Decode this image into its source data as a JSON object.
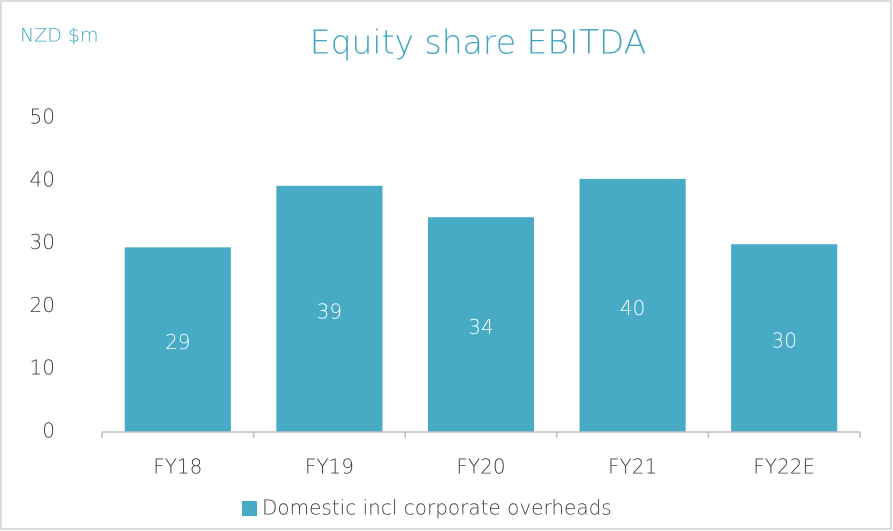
{
  "chart_data": {
    "type": "bar",
    "title": "Equity share EBITDA",
    "y_label": "NZD $m",
    "categories": [
      "FY18",
      "FY19",
      "FY20",
      "FY21",
      "FY22E"
    ],
    "series": [
      {
        "name": "Domestic incl corporate overheads",
        "color": "#47abc6",
        "values": [
          29.4,
          39.2,
          34.2,
          40.3,
          29.9
        ],
        "value_labels": [
          "29",
          "39",
          "34",
          "40",
          "30"
        ]
      }
    ],
    "ylim": [
      0,
      50
    ],
    "yticks": [
      0,
      10,
      20,
      30,
      40,
      50
    ],
    "grid": false,
    "legend": "bottom"
  }
}
